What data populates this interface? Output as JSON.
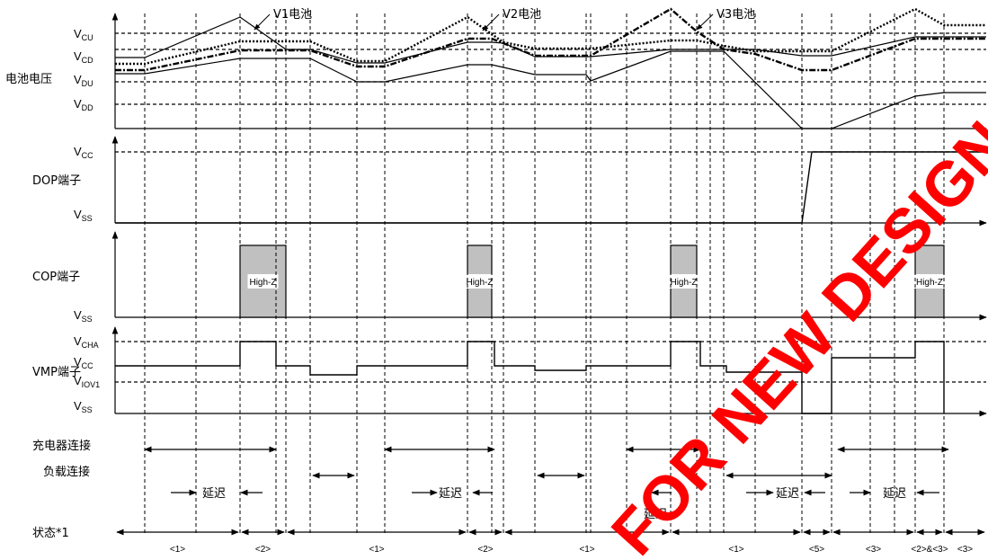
{
  "rows": {
    "battery_voltage": "电池电压",
    "dop": "DOP端子",
    "cop": "COP端子",
    "vmp": "VMP端子",
    "charger": "充电器连接",
    "load": "负载连接",
    "state": "状态*1"
  },
  "callouts": {
    "v1": "V1电池",
    "v2": "V2电池",
    "v3": "V3电池"
  },
  "vlabels": {
    "vcu": {
      "main": "V",
      "sub": "CU"
    },
    "vcd": {
      "main": "V",
      "sub": "CD"
    },
    "vdu": {
      "main": "V",
      "sub": "DU"
    },
    "vdd": {
      "main": "V",
      "sub": "DD"
    },
    "vcc_dop": {
      "main": "V",
      "sub": "CC"
    },
    "vss_dop": {
      "main": "V",
      "sub": "SS"
    },
    "vss_cop": {
      "main": "V",
      "sub": "SS"
    },
    "vcha": {
      "main": "V",
      "sub": "CHA"
    },
    "vcc_vmp": {
      "main": "V",
      "sub": "CC"
    },
    "viov1": {
      "main": "V",
      "sub": "IOV1"
    },
    "vss_vmp": {
      "main": "V",
      "sub": "SS"
    }
  },
  "highz": "High-Z",
  "delay": "延迟",
  "states": [
    "<1>",
    "<2>",
    "<1>",
    "<2>",
    "<1>",
    "<1>",
    "<5>",
    "<3>",
    "<2>&<3>",
    "<3>"
  ],
  "watermark": "FOR NEW DESIGN",
  "colors": {
    "highz_fill": "#c0c0c0",
    "watermark": "#ff0000"
  }
}
